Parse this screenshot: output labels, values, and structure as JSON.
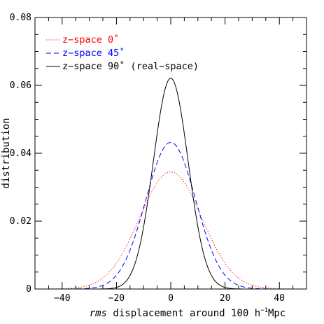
{
  "chart_data": {
    "type": "line",
    "xlabel_italic": "rms",
    "xlabel_rest": " displacement around 100 h",
    "xlabel_sup": "−1",
    "xlabel_unit": "Mpc",
    "ylabel": "distribution",
    "xlim": [
      -50,
      50
    ],
    "ylim": [
      0,
      0.08
    ],
    "x_ticks": [
      -40,
      -20,
      0,
      20,
      40
    ],
    "x_tick_labels": [
      "−40",
      "−20",
      "0",
      "20",
      "40"
    ],
    "y_ticks": [
      0,
      0.02,
      0.04,
      0.06,
      0.08
    ],
    "y_tick_labels": [
      "0",
      "0.02",
      "0.04",
      "0.06",
      "0.08"
    ],
    "grid": false,
    "legend_position": "top-left",
    "x_range": [
      -46,
      46
    ],
    "series": [
      {
        "name": "z−space 0˚",
        "color": "#ff0000",
        "dash": "dotted",
        "peak": 0.0345,
        "sigma": 11.5
      },
      {
        "name": "z−space 45˚",
        "color": "#0000ff",
        "dash": "dashed",
        "peak": 0.0432,
        "sigma": 9.2
      },
      {
        "name": "z−space 90˚ (real−space)",
        "color": "#000000",
        "dash": "solid",
        "peak": 0.0621,
        "sigma": 6.4
      }
    ]
  }
}
